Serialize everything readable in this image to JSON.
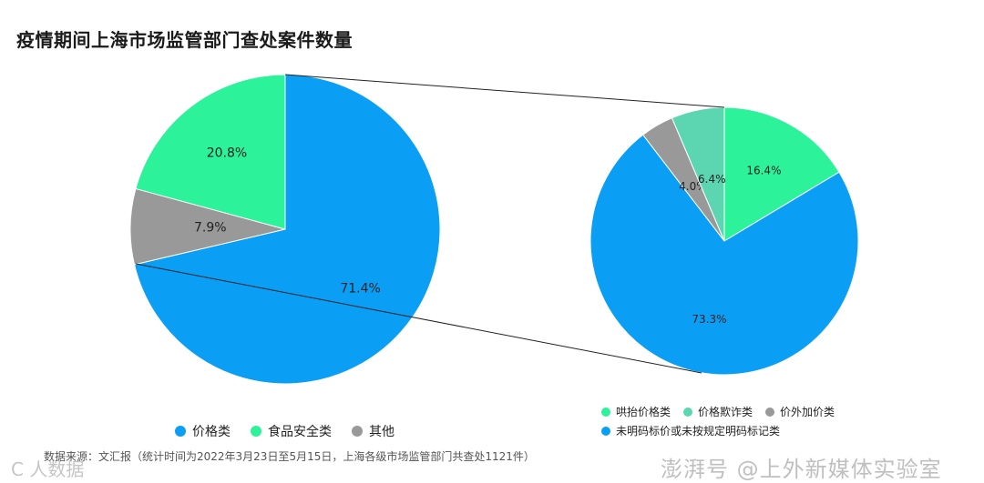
{
  "title": "疫情期间上海市场监管部门查处案件数量",
  "chart_data": [
    {
      "type": "pie",
      "slices": [
        {
          "label": "价格类",
          "value": 71.4,
          "display": "71.4%",
          "color": "#0a9ef5"
        },
        {
          "label": "其他",
          "value": 7.9,
          "display": "7.9%",
          "color": "#999999"
        },
        {
          "label": "食品安全类",
          "value": 20.8,
          "display": "20.8%",
          "color": "#2cf29a"
        }
      ],
      "legend": [
        "价格类",
        "食品安全类",
        "其他"
      ]
    },
    {
      "type": "pie",
      "slices": [
        {
          "label": "哄抬价格类",
          "value": 16.4,
          "display": "16.4%",
          "color": "#2cf29a"
        },
        {
          "label": "未明码标价或未按规定明码标记类",
          "value": 73.3,
          "display": "73.3%",
          "color": "#0a9ef5"
        },
        {
          "label": "价外加价类",
          "value": 4.0,
          "display": "4.0%",
          "color": "#999999"
        },
        {
          "label": "价格欺诈类",
          "value": 6.4,
          "display": "6.4%",
          "color": "#5cd6b0"
        }
      ],
      "legend": [
        "哄抬价格类",
        "价格欺诈类",
        "价外加价类",
        "未明码标价或未按规定明码标记类"
      ]
    }
  ],
  "legend_left": [
    {
      "label": "价格类",
      "color": "#0a9ef5"
    },
    {
      "label": "食品安全类",
      "color": "#2cf29a"
    },
    {
      "label": "其他",
      "color": "#999999"
    }
  ],
  "legend_right": [
    {
      "label": "哄抬价格类",
      "color": "#2cf29a"
    },
    {
      "label": "价格欺诈类",
      "color": "#5cd6b0"
    },
    {
      "label": "价外加价类",
      "color": "#999999"
    },
    {
      "label": "未明码标价或未按规定明码标记类",
      "color": "#0a9ef5"
    }
  ],
  "source": "数据来源：文汇报（统计时间为2022年3月23日至5月15日，上海各级市场监管部门共查处1121件）",
  "watermark_left": "C 人数据",
  "watermark_right": "澎湃号 @上外新媒体实验室"
}
